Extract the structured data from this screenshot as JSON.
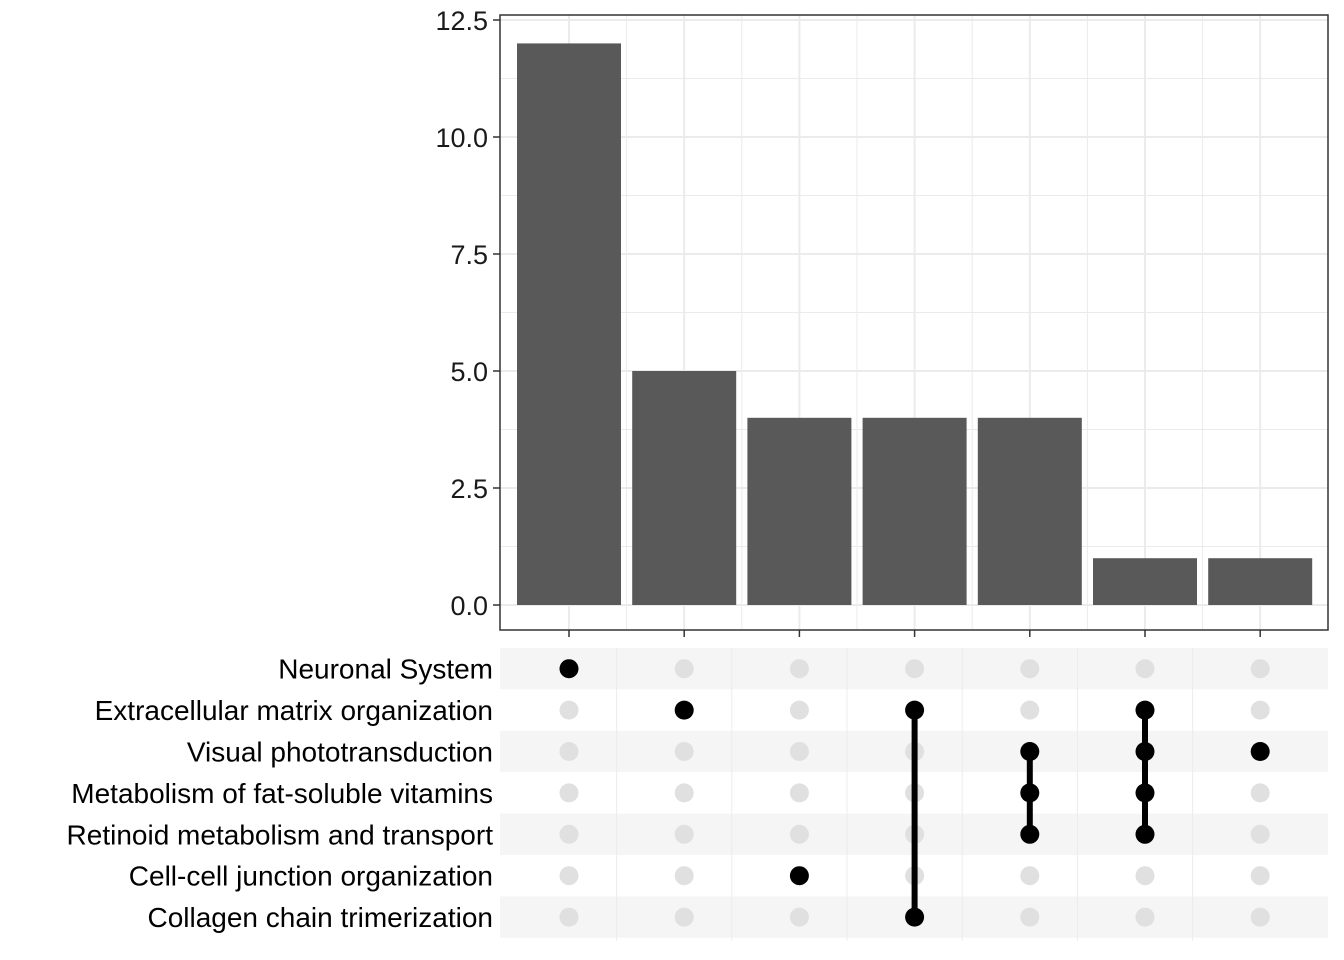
{
  "chart_data": {
    "type": "bar",
    "title": "",
    "xlabel": "",
    "ylabel": "",
    "ylim": [
      0,
      12.5
    ],
    "y_ticks": [
      "0.0",
      "2.5",
      "5.0",
      "7.5",
      "10.0",
      "12.5"
    ],
    "y_tick_values": [
      0,
      2.5,
      5,
      7.5,
      10,
      12.5
    ],
    "grid": true,
    "bar_color": "#595959",
    "sets": [
      "Neuronal System",
      "Extracellular matrix organization",
      "Visual phototransduction",
      "Metabolism of fat-soluble vitamins",
      "Retinoid metabolism and transport",
      "Cell-cell junction organization",
      "Collagen chain trimerization"
    ],
    "intersections": [
      {
        "value": 12,
        "members": [
          "Neuronal System"
        ]
      },
      {
        "value": 5,
        "members": [
          "Extracellular matrix organization"
        ]
      },
      {
        "value": 4,
        "members": [
          "Cell-cell junction organization"
        ]
      },
      {
        "value": 4,
        "members": [
          "Extracellular matrix organization",
          "Collagen chain trimerization"
        ]
      },
      {
        "value": 4,
        "members": [
          "Visual phototransduction",
          "Metabolism of fat-soluble vitamins",
          "Retinoid metabolism and transport"
        ]
      },
      {
        "value": 1,
        "members": [
          "Extracellular matrix organization",
          "Visual phototransduction",
          "Metabolism of fat-soluble vitamins",
          "Retinoid metabolism and transport"
        ]
      },
      {
        "value": 1,
        "members": [
          "Visual phototransduction"
        ]
      }
    ],
    "colors": {
      "active_dot": "#000000",
      "inactive_dot": "#e0e0e0",
      "stripe_dark": "#f5f5f5",
      "stripe_light": "#ffffff",
      "grid": "#ebebeb",
      "panel_border": "#333333"
    }
  }
}
